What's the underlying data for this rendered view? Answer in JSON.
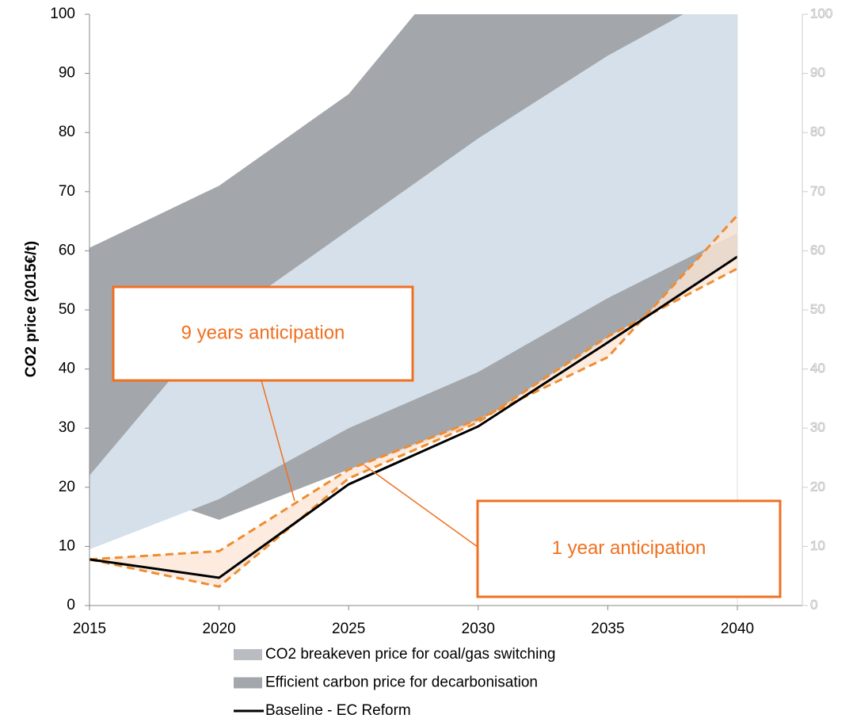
{
  "chart_data": {
    "type": "area-line",
    "ylabel": "CO2 price (2015€/t)",
    "x": [
      2015,
      2020,
      2025,
      2030,
      2035,
      2040
    ],
    "xlim": [
      2015,
      2040
    ],
    "xticks": [
      2015,
      2020,
      2025,
      2030,
      2035,
      2040
    ],
    "ylim": [
      0,
      100
    ],
    "yticks": [
      0,
      10,
      20,
      30,
      40,
      50,
      60,
      70,
      80,
      90,
      100
    ],
    "y2lim": [
      0,
      100
    ],
    "y2ticks": [
      0,
      10,
      20,
      30,
      40,
      50,
      60,
      70,
      80,
      90,
      100
    ],
    "bands": [
      {
        "name": "Efficient carbon price for decarbonisation",
        "color": "#a3a7ab",
        "upper": [
          60.5,
          71,
          86.5,
          113,
          125,
          135
        ],
        "lower": [
          22,
          14.5,
          23,
          31,
          45,
          59
        ]
      },
      {
        "name": "CO2 breakeven price for coal/gas switching",
        "color": "#d6e0ea",
        "upper": [
          22,
          48,
          63.5,
          79,
          93,
          105
        ],
        "lower": [
          9.5,
          18,
          30,
          39.5,
          52,
          63
        ]
      }
    ],
    "legend_order": [
      1,
      0
    ],
    "series": [
      {
        "name": "Baseline - EC Reform",
        "color": "#000000",
        "values": [
          7.8,
          4.7,
          20.5,
          30.3,
          44.5,
          59
        ]
      }
    ],
    "anticipation": {
      "color": "#f08c30",
      "fill": "#fbe6d6",
      "lines": [
        [
          7.8,
          9.2,
          23,
          31.5,
          42,
          66
        ],
        [
          7.8,
          3.2,
          21.5,
          31,
          45.5,
          57
        ]
      ]
    },
    "annotations": [
      "9 years anticipation",
      "1 year anticipation"
    ]
  }
}
